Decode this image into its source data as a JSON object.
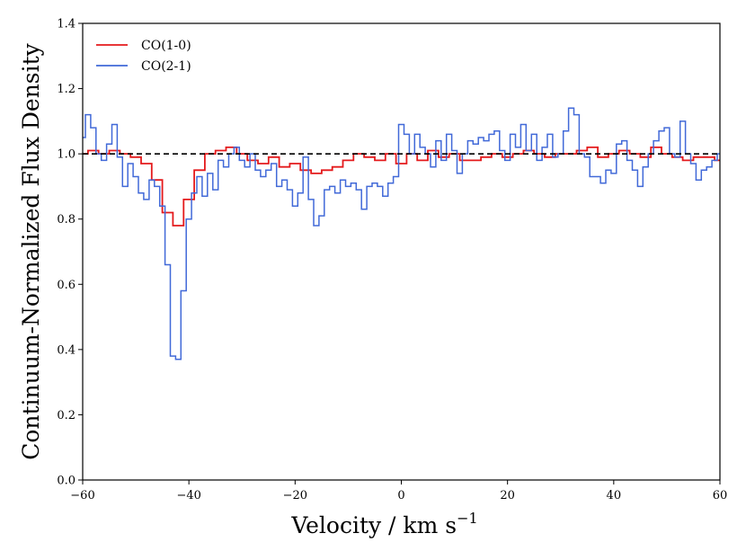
{
  "chart_data": {
    "type": "line",
    "title": "",
    "xlabel": "Velocity / km s",
    "xlabel_sup": "−1",
    "ylabel": "Continuum-Normalized Flux Density",
    "xlim": [
      -60,
      60
    ],
    "ylim": [
      0.0,
      1.4
    ],
    "xticks": [
      -60,
      -40,
      -20,
      0,
      20,
      40,
      60
    ],
    "xtick_labels": [
      "−60",
      "−40",
      "−20",
      "0",
      "20",
      "40",
      "60"
    ],
    "yticks": [
      0.0,
      0.2,
      0.4,
      0.6,
      0.8,
      1.0,
      1.2,
      1.4
    ],
    "ytick_labels": [
      "0.0",
      "0.2",
      "0.4",
      "0.6",
      "0.8",
      "1.0",
      "1.2",
      "1.4"
    ],
    "grid": false,
    "legend_position": "top-left",
    "reference_line": {
      "y": 1.0,
      "style": "dashed",
      "color": "#000000"
    },
    "series": [
      {
        "name": "CO(1-0)",
        "color": "#e41a1c",
        "step": "mid",
        "x": [
          -60,
          -58,
          -56,
          -54,
          -52,
          -50,
          -48,
          -46,
          -44,
          -42,
          -40,
          -38,
          -36,
          -34,
          -32,
          -30,
          -28,
          -26,
          -24,
          -22,
          -20,
          -18,
          -16,
          -14,
          -12,
          -10,
          -8,
          -6,
          -4,
          -2,
          0,
          2,
          4,
          6,
          8,
          10,
          12,
          14,
          16,
          18,
          20,
          22,
          24,
          26,
          28,
          30,
          32,
          34,
          36,
          38,
          40,
          42,
          44,
          46,
          48,
          50,
          52,
          54,
          56,
          58,
          60
        ],
        "values": [
          1.0,
          1.01,
          1.0,
          1.01,
          1.0,
          0.99,
          0.97,
          0.92,
          0.82,
          0.78,
          0.86,
          0.95,
          1.0,
          1.01,
          1.02,
          1.0,
          0.98,
          0.97,
          0.99,
          0.96,
          0.97,
          0.95,
          0.94,
          0.95,
          0.96,
          0.98,
          1.0,
          0.99,
          0.98,
          1.0,
          0.97,
          1.0,
          0.98,
          1.01,
          0.99,
          1.0,
          0.98,
          0.98,
          0.99,
          1.0,
          0.99,
          1.0,
          1.01,
          1.0,
          0.99,
          1.0,
          1.0,
          1.01,
          1.02,
          0.99,
          1.0,
          1.01,
          1.0,
          0.99,
          1.02,
          1.0,
          0.99,
          0.98,
          0.99,
          0.99,
          0.98
        ]
      },
      {
        "name": "CO(2-1)",
        "color": "#4169d8",
        "step": "mid",
        "x": [
          -60,
          -59,
          -58,
          -57,
          -56,
          -55,
          -54,
          -53,
          -52,
          -51,
          -50,
          -49,
          -48,
          -47,
          -46,
          -45,
          -44,
          -43,
          -42,
          -41,
          -40,
          -39,
          -38,
          -37,
          -36,
          -35,
          -34,
          -33,
          -32,
          -31,
          -30,
          -29,
          -28,
          -27,
          -26,
          -25,
          -24,
          -23,
          -22,
          -21,
          -20,
          -19,
          -18,
          -17,
          -16,
          -15,
          -14,
          -13,
          -12,
          -11,
          -10,
          -9,
          -8,
          -7,
          -6,
          -5,
          -4,
          -3,
          -2,
          -1,
          0,
          1,
          2,
          3,
          4,
          5,
          6,
          7,
          8,
          9,
          10,
          11,
          12,
          13,
          14,
          15,
          16,
          17,
          18,
          19,
          20,
          21,
          22,
          23,
          24,
          25,
          26,
          27,
          28,
          29,
          30,
          31,
          32,
          33,
          34,
          35,
          36,
          37,
          38,
          39,
          40,
          41,
          42,
          43,
          44,
          45,
          46,
          47,
          48,
          49,
          50,
          51,
          52,
          53,
          54,
          55,
          56,
          57,
          58,
          59,
          60
        ],
        "values": [
          1.05,
          1.12,
          1.08,
          1.0,
          0.98,
          1.03,
          1.09,
          0.99,
          0.9,
          0.97,
          0.93,
          0.88,
          0.86,
          0.92,
          0.9,
          0.84,
          0.66,
          0.38,
          0.37,
          0.58,
          0.8,
          0.88,
          0.93,
          0.87,
          0.94,
          0.89,
          0.98,
          0.96,
          1.0,
          1.02,
          0.98,
          0.96,
          1.0,
          0.95,
          0.93,
          0.95,
          0.97,
          0.9,
          0.92,
          0.89,
          0.84,
          0.88,
          0.99,
          0.86,
          0.78,
          0.81,
          0.89,
          0.9,
          0.88,
          0.92,
          0.9,
          0.91,
          0.89,
          0.83,
          0.9,
          0.91,
          0.9,
          0.87,
          0.91,
          0.93,
          1.09,
          1.06,
          1.0,
          1.06,
          1.02,
          1.0,
          0.96,
          1.04,
          0.98,
          1.06,
          1.01,
          0.94,
          1.0,
          1.04,
          1.03,
          1.05,
          1.04,
          1.06,
          1.07,
          1.01,
          0.98,
          1.06,
          1.02,
          1.09,
          1.01,
          1.06,
          0.98,
          1.02,
          1.06,
          0.99,
          1.0,
          1.07,
          1.14,
          1.12,
          1.0,
          0.99,
          0.93,
          0.93,
          0.91,
          0.95,
          0.94,
          1.03,
          1.04,
          0.98,
          0.95,
          0.9,
          0.96,
          1.0,
          1.04,
          1.07,
          1.08,
          1.0,
          0.99,
          1.1,
          1.0,
          0.97,
          0.92,
          0.95,
          0.96,
          0.98,
          1.0
        ]
      }
    ]
  }
}
